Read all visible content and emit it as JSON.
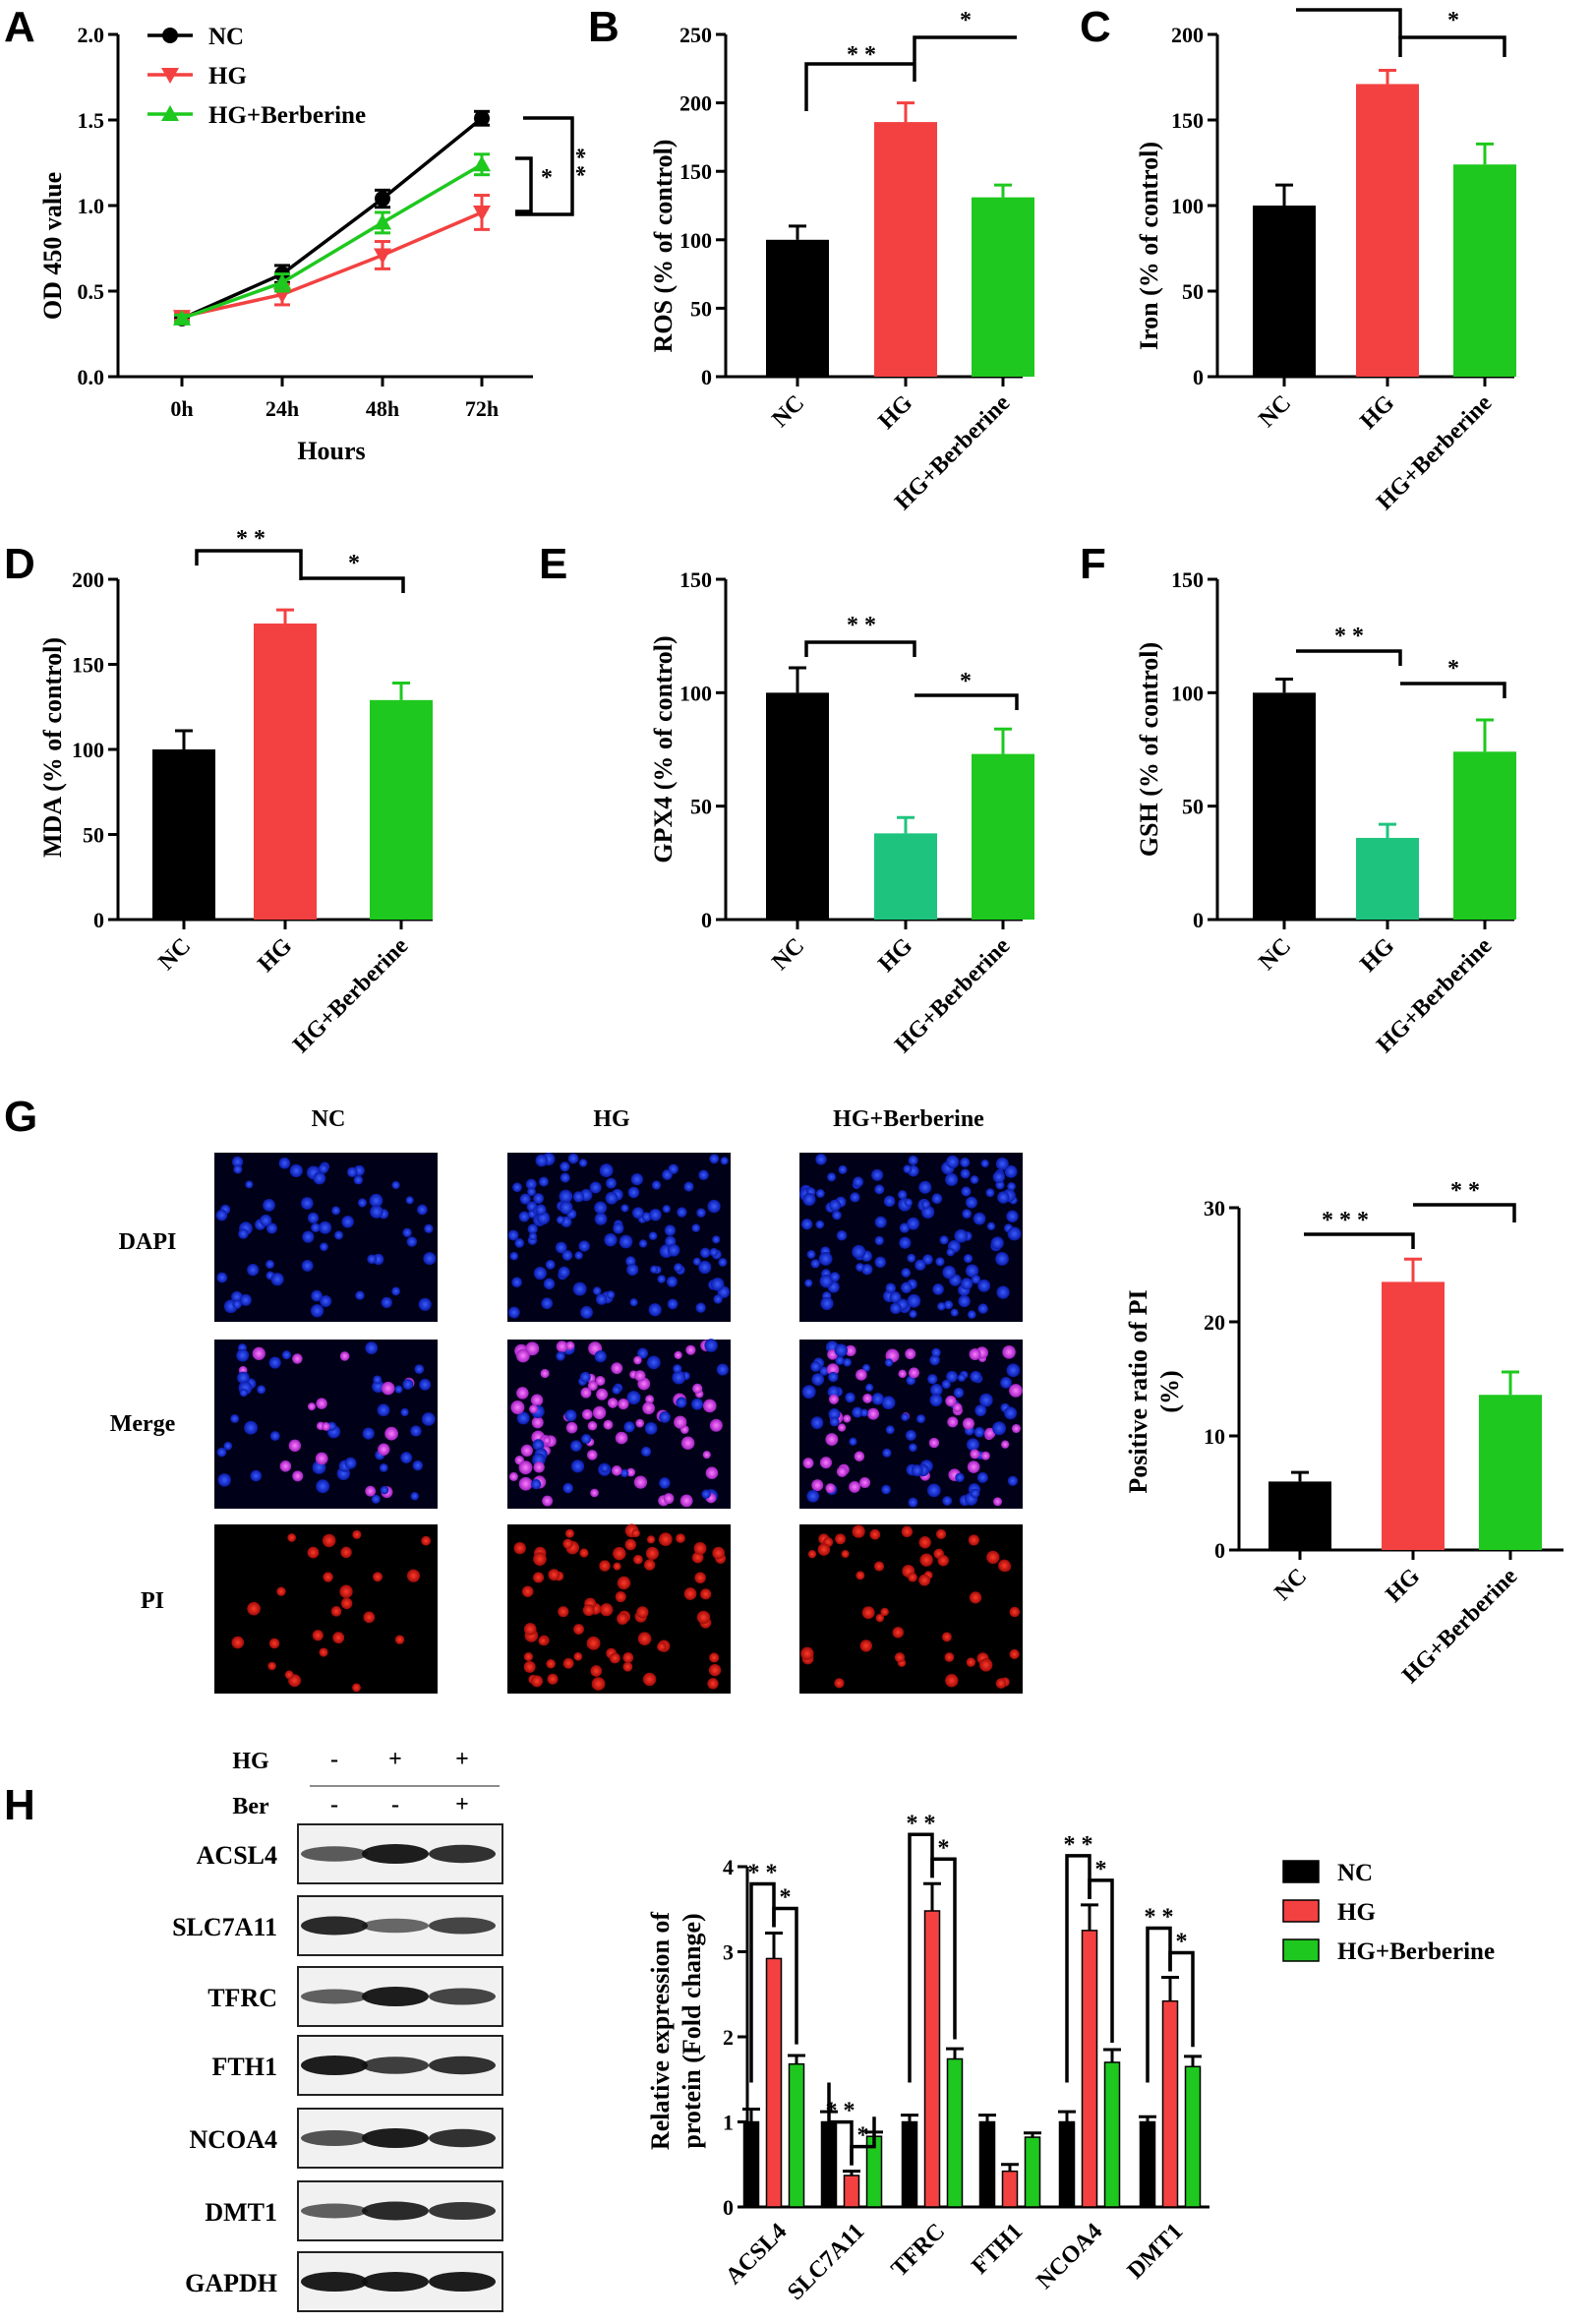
{
  "colors": {
    "nc": "#000000",
    "hg": "#f34141",
    "hgber": "#1ec81e",
    "hg_teal": "#1ec47e",
    "text": "#000000"
  },
  "groups": [
    "NC",
    "HG",
    "HG+Berberine"
  ],
  "panels": {
    "A": {
      "letter": "A",
      "xlabel": "Hours",
      "ylabel": "OD 450 value",
      "sig_inner": "*",
      "sig_outer": "* *"
    },
    "B": {
      "letter": "B",
      "ylabel": "ROS (% of control)",
      "sig1": "* *",
      "sig2": "*"
    },
    "C": {
      "letter": "C",
      "ylabel": "Iron (% of control)",
      "sig1": "",
      "sig2": "*"
    },
    "D": {
      "letter": "D",
      "ylabel": "MDA (% of control)",
      "sig1": "* *",
      "sig2": "*"
    },
    "E": {
      "letter": "E",
      "ylabel": "GPX4 (% of control)",
      "sig1": "* *",
      "sig2": "*"
    },
    "F": {
      "letter": "F",
      "ylabel": "GSH (% of control)",
      "sig1": "* *",
      "sig2": "*"
    },
    "G": {
      "letter": "G",
      "col_titles": [
        "NC",
        "HG",
        "HG+Berberine"
      ],
      "row_titles": [
        "DAPI",
        "Merge",
        "PI"
      ],
      "ylabel_line1": "Positive ratio of PI",
      "ylabel_line2": "(%)",
      "sig1": "* * *",
      "sig2": "* *"
    },
    "H": {
      "letter": "H",
      "treat_rows": [
        {
          "label": "HG",
          "marks": [
            "-",
            "+",
            "+"
          ]
        },
        {
          "label": "Ber",
          "marks": [
            "-",
            "-",
            "+"
          ]
        }
      ],
      "proteins": [
        "ACSL4",
        "SLC7A11",
        "TFRC",
        "FTH1",
        "NCOA4",
        "DMT1",
        "GAPDH"
      ],
      "ylabel_line1": "Relative expression of",
      "ylabel_line2": "protein (Fold change)",
      "legend": [
        "NC",
        "HG",
        "HG+Berberine"
      ],
      "sig_a": "* *",
      "sig_b": "*"
    }
  },
  "chart_data": [
    {
      "panel": "A",
      "type": "line",
      "title": "",
      "xlabel": "Hours",
      "ylabel": "OD 450 value",
      "categories": [
        "0h",
        "24h",
        "48h",
        "72h"
      ],
      "ylim": [
        0,
        2.0
      ],
      "yticks": [
        "0.0",
        "0.5",
        "1.0",
        "1.5",
        "2.0"
      ],
      "legend": "top-left",
      "series": [
        {
          "name": "NC",
          "values": [
            0.34,
            0.6,
            1.04,
            1.51
          ],
          "errors": [
            0.02,
            0.05,
            0.05,
            0.04
          ]
        },
        {
          "name": "HG",
          "values": [
            0.35,
            0.48,
            0.71,
            0.96
          ],
          "errors": [
            0.02,
            0.06,
            0.08,
            0.1
          ]
        },
        {
          "name": "HG+Berberine",
          "values": [
            0.34,
            0.55,
            0.9,
            1.24
          ],
          "errors": [
            0.02,
            0.05,
            0.06,
            0.06
          ]
        }
      ]
    },
    {
      "panel": "B",
      "type": "bar",
      "ylabel": "ROS (% of control)",
      "categories": [
        "NC",
        "HG",
        "HG+Berberine"
      ],
      "values": [
        100,
        186,
        131
      ],
      "errors": [
        10,
        14,
        9
      ],
      "ylim": [
        0,
        250
      ],
      "yticks": [
        "0",
        "50",
        "100",
        "150",
        "200",
        "250"
      ]
    },
    {
      "panel": "C",
      "type": "bar",
      "ylabel": "Iron (% of control)",
      "categories": [
        "NC",
        "HG",
        "HG+Berberine"
      ],
      "values": [
        100,
        171,
        124
      ],
      "errors": [
        12,
        8,
        12
      ],
      "ylim": [
        0,
        200
      ],
      "yticks": [
        "0",
        "50",
        "100",
        "150",
        "200"
      ]
    },
    {
      "panel": "D",
      "type": "bar",
      "ylabel": "MDA (% of control)",
      "categories": [
        "NC",
        "HG",
        "HG+Berberine"
      ],
      "values": [
        100,
        174,
        129
      ],
      "errors": [
        11,
        8,
        10
      ],
      "ylim": [
        0,
        200
      ],
      "yticks": [
        "0",
        "50",
        "100",
        "150",
        "200"
      ]
    },
    {
      "panel": "E",
      "type": "bar",
      "ylabel": "GPX4 (% of control)",
      "categories": [
        "NC",
        "HG",
        "HG+Berberine"
      ],
      "values": [
        100,
        38,
        73
      ],
      "errors": [
        11,
        7,
        11
      ],
      "ylim": [
        0,
        150
      ],
      "yticks": [
        "0",
        "50",
        "100",
        "150"
      ]
    },
    {
      "panel": "F",
      "type": "bar",
      "ylabel": "GSH (% of control)",
      "categories": [
        "NC",
        "HG",
        "HG+Berberine"
      ],
      "values": [
        100,
        36,
        74
      ],
      "errors": [
        6,
        6,
        14
      ],
      "ylim": [
        0,
        150
      ],
      "yticks": [
        "0",
        "50",
        "100",
        "150"
      ]
    },
    {
      "panel": "G",
      "type": "bar",
      "ylabel": "Positive ratio of PI (%)",
      "categories": [
        "NC",
        "HG",
        "HG+Berberine"
      ],
      "values": [
        6,
        23.5,
        13.6
      ],
      "errors": [
        0.8,
        2.0,
        2.0
      ],
      "ylim": [
        0,
        30
      ],
      "yticks": [
        "0",
        "10",
        "20",
        "30"
      ]
    },
    {
      "panel": "H",
      "type": "bar",
      "ylabel": "Relative expression of protein (Fold change)",
      "categories": [
        "ACSL4",
        "SLC7A11",
        "TFRC",
        "FTH1",
        "NCOA4",
        "DMT1"
      ],
      "ylim": [
        0,
        4
      ],
      "yticks": [
        "0",
        "1",
        "2",
        "3",
        "4"
      ],
      "legend": "right",
      "series": [
        {
          "name": "NC",
          "values": [
            1.0,
            1.0,
            1.0,
            1.0,
            1.0,
            1.0
          ],
          "errors": [
            0.15,
            0.12,
            0.08,
            0.08,
            0.12,
            0.06
          ]
        },
        {
          "name": "HG",
          "values": [
            2.92,
            0.37,
            3.48,
            0.42,
            3.25,
            2.42
          ],
          "errors": [
            0.3,
            0.05,
            0.32,
            0.08,
            0.3,
            0.28
          ]
        },
        {
          "name": "HG+Berberine",
          "values": [
            1.68,
            0.83,
            1.74,
            0.82,
            1.7,
            1.65
          ],
          "errors": [
            0.1,
            0.05,
            0.12,
            0.05,
            0.15,
            0.12
          ]
        }
      ]
    }
  ]
}
